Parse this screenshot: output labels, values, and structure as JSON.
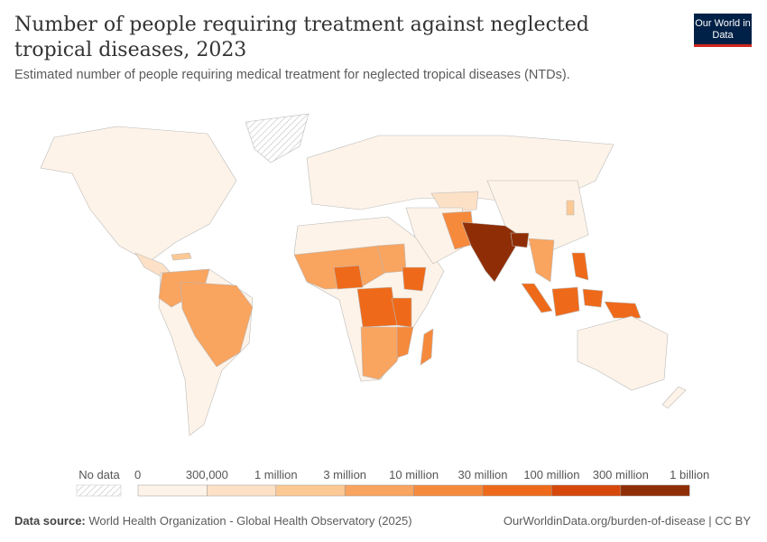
{
  "header": {
    "title": "Number of people requiring treatment against neglected tropical diseases, 2023",
    "subtitle": "Estimated number of people requiring medical treatment for neglected tropical diseases (NTDs).",
    "logo": "Our World in Data"
  },
  "legend": {
    "no_data_label": "No data",
    "no_data_color": "#e8e8e8",
    "ticks": [
      "0",
      "300,000",
      "1 million",
      "3 million",
      "10 million",
      "30 million",
      "100 million",
      "300 million",
      "1 billion"
    ],
    "colors": [
      "#fef3e8",
      "#fde1c6",
      "#fcc995",
      "#f9a45f",
      "#f68a3c",
      "#ee6a1a",
      "#d6470a",
      "#8f2e06"
    ]
  },
  "map_regions": [
    {
      "region": "India",
      "bin": 7
    },
    {
      "region": "Bangladesh",
      "bin": 7
    },
    {
      "region": "Indonesia",
      "bin": 5
    },
    {
      "region": "Nigeria",
      "bin": 5
    },
    {
      "region": "DR Congo",
      "bin": 5
    },
    {
      "region": "Ethiopia",
      "bin": 5
    },
    {
      "region": "Tanzania",
      "bin": 5
    },
    {
      "region": "Philippines",
      "bin": 5
    },
    {
      "region": "Pakistan",
      "bin": 4
    },
    {
      "region": "Brazil",
      "bin": 3
    },
    {
      "region": "Sudan",
      "bin": 3
    }
  ],
  "footer": {
    "source_label": "Data source:",
    "source": "World Health Organization - Global Health Observatory (2025)",
    "url": "OurWorldinData.org/burden-of-disease | CC BY"
  }
}
